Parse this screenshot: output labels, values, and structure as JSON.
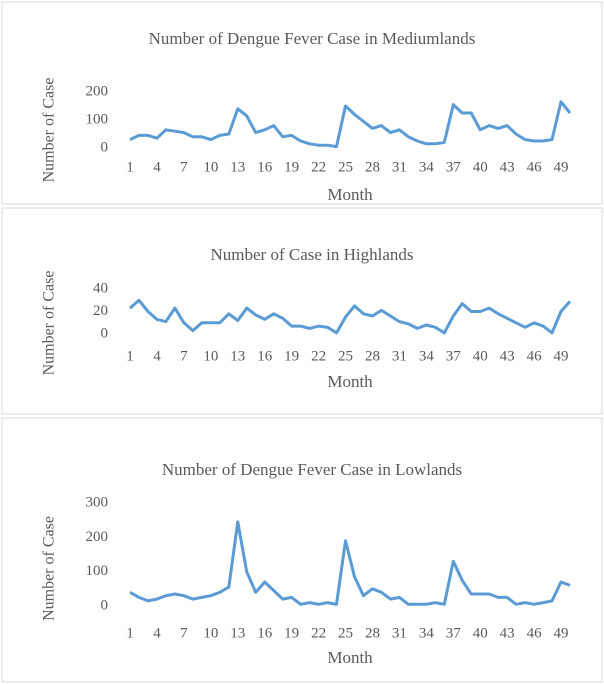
{
  "chart_data": [
    {
      "type": "line",
      "title": "Number of Dengue Fever Case in Mediumlands",
      "xlabel": "Month",
      "ylabel": "Number of Case",
      "categories": [
        1,
        null,
        null,
        4,
        null,
        null,
        7,
        null,
        null,
        10,
        null,
        null,
        13,
        null,
        null,
        16,
        null,
        null,
        19,
        null,
        null,
        22,
        null,
        null,
        25,
        null,
        null,
        28,
        null,
        null,
        31,
        null,
        null,
        34,
        null,
        null,
        37,
        null,
        null,
        40,
        null,
        null,
        43,
        null,
        null,
        46,
        null,
        null,
        49,
        null
      ],
      "values": [
        30,
        45,
        45,
        35,
        65,
        60,
        55,
        40,
        40,
        30,
        45,
        50,
        140,
        115,
        55,
        65,
        80,
        40,
        45,
        25,
        15,
        10,
        10,
        5,
        150,
        120,
        95,
        70,
        80,
        55,
        65,
        40,
        25,
        15,
        15,
        20,
        155,
        125,
        125,
        65,
        80,
        70,
        80,
        50,
        30,
        25,
        25,
        30,
        165,
        125
      ],
      "color": "#5b9bd5",
      "ylim": [
        0,
        200
      ],
      "yticks": [
        0,
        100,
        200
      ],
      "grid": false
    },
    {
      "type": "line",
      "title": "Number of Case in Highlands",
      "xlabel": "Month",
      "ylabel": "Number of Case",
      "categories": [
        1,
        null,
        null,
        4,
        null,
        null,
        7,
        null,
        null,
        10,
        null,
        null,
        13,
        null,
        null,
        16,
        null,
        null,
        19,
        null,
        null,
        22,
        null,
        null,
        25,
        null,
        null,
        28,
        null,
        null,
        31,
        null,
        null,
        34,
        null,
        null,
        37,
        null,
        null,
        40,
        null,
        null,
        43,
        null,
        null,
        46,
        null,
        null,
        49,
        null
      ],
      "values": [
        23,
        30,
        20,
        13,
        11,
        23,
        10,
        3,
        10,
        10,
        10,
        18,
        12,
        23,
        17,
        13,
        18,
        14,
        7,
        7,
        5,
        7,
        6,
        1,
        15,
        25,
        18,
        16,
        21,
        16,
        11,
        9,
        5,
        8,
        6,
        1,
        16,
        27,
        20,
        20,
        23,
        18,
        14,
        10,
        6,
        10,
        7,
        1,
        20,
        29
      ],
      "color": "#5b9bd5",
      "ylim": [
        0,
        40
      ],
      "yticks": [
        0,
        20,
        40
      ],
      "grid": false
    },
    {
      "type": "line",
      "title": "Number of Dengue Fever Case in Lowlands",
      "xlabel": "Month",
      "ylabel": "Number of Case",
      "categories": [
        1,
        null,
        null,
        4,
        null,
        null,
        7,
        null,
        null,
        10,
        null,
        null,
        13,
        null,
        null,
        16,
        null,
        null,
        19,
        null,
        null,
        22,
        null,
        null,
        25,
        null,
        null,
        28,
        null,
        null,
        31,
        null,
        null,
        34,
        null,
        null,
        37,
        null,
        null,
        40,
        null,
        null,
        43,
        null,
        null,
        46,
        null,
        null,
        49,
        null
      ],
      "values": [
        40,
        25,
        15,
        20,
        30,
        35,
        30,
        20,
        25,
        30,
        40,
        55,
        245,
        100,
        40,
        70,
        45,
        20,
        25,
        5,
        10,
        5,
        10,
        5,
        190,
        85,
        30,
        50,
        40,
        20,
        25,
        5,
        5,
        5,
        10,
        5,
        130,
        75,
        35,
        35,
        35,
        25,
        25,
        5,
        10,
        5,
        10,
        15,
        70,
        60
      ],
      "color": "#5b9bd5",
      "ylim": [
        0,
        300
      ],
      "yticks": [
        0,
        100,
        200,
        300
      ],
      "grid": false
    }
  ]
}
